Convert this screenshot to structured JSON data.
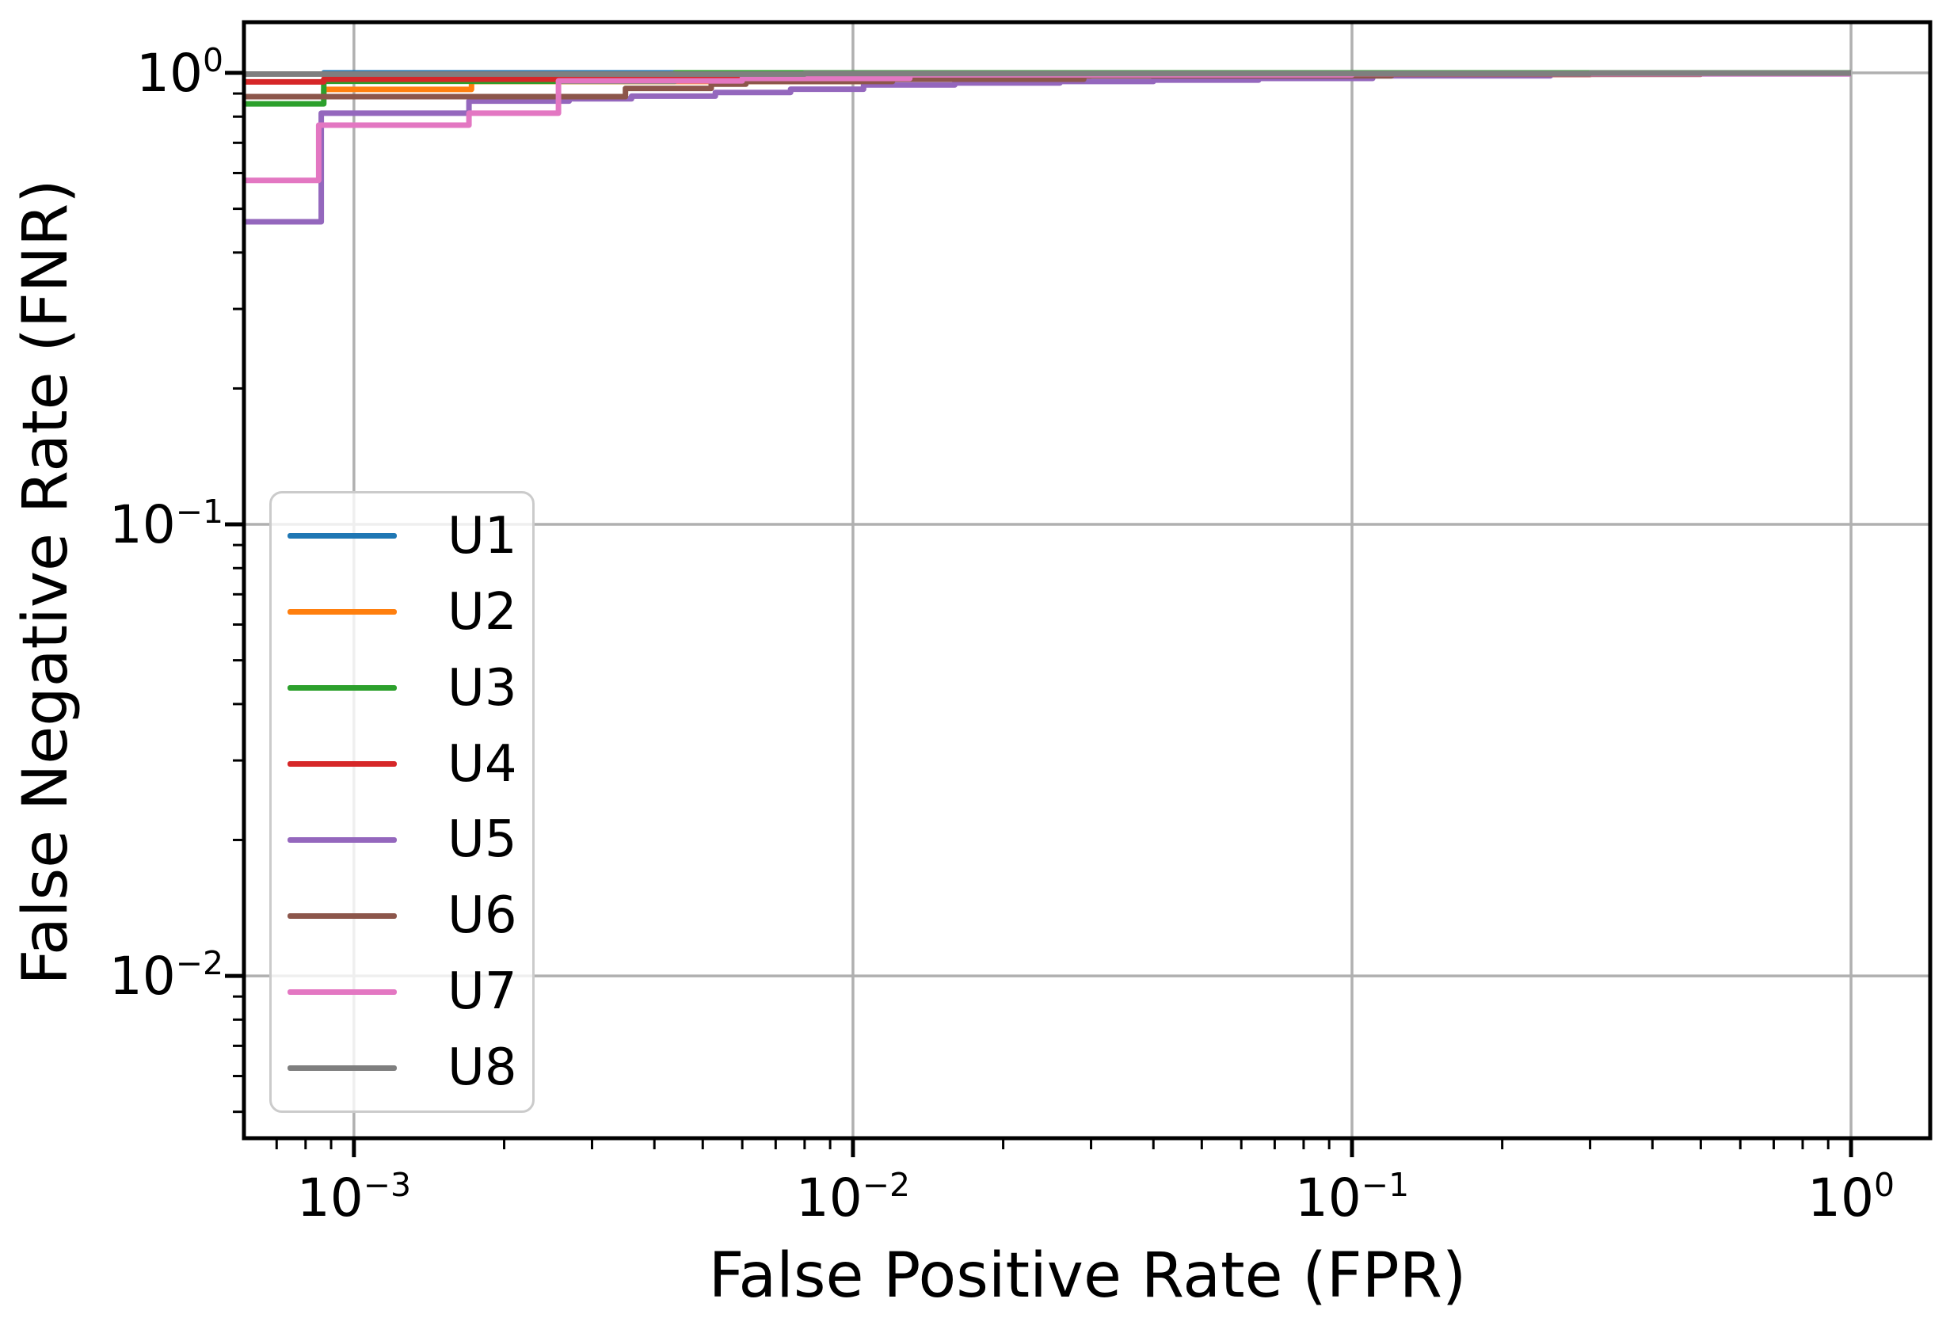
{
  "chart_data": {
    "type": "line",
    "subtype": "step-post",
    "title": "",
    "xlabel": "False Positive Rate (FPR)",
    "ylabel": "False Negative Rate (FNR)",
    "xscale": "log",
    "yscale": "log",
    "xlim": [
      0.000602,
      1.441
    ],
    "ylim": [
      0.00437,
      1.295
    ],
    "grid": true,
    "grid_color": "#b0b0b0",
    "spine_color": "#000000",
    "legend_position": "lower-left-inside",
    "x_ticks": [
      {
        "value": 0.001,
        "base": "10",
        "exp": "−3"
      },
      {
        "value": 0.01,
        "base": "10",
        "exp": "−2"
      },
      {
        "value": 0.1,
        "base": "10",
        "exp": "−1"
      },
      {
        "value": 1.0,
        "base": "10",
        "exp": "0"
      }
    ],
    "y_ticks": [
      {
        "value": 1.0,
        "base": "10",
        "exp": "0"
      },
      {
        "value": 0.1,
        "base": "10",
        "exp": "−1"
      },
      {
        "value": 0.01,
        "base": "10",
        "exp": "−2"
      }
    ],
    "curve_end_x": 1.0,
    "series": [
      {
        "name": "U1",
        "color": "#1f77b4",
        "start_fnr": 0.994,
        "steps": [
          [
            0.00087,
            1.0
          ]
        ]
      },
      {
        "name": "U2",
        "color": "#ff7f0e",
        "start_fnr": 0.886,
        "steps": [
          [
            0.00087,
            0.919
          ],
          [
            0.00172,
            0.957
          ],
          [
            0.012,
            0.985
          ],
          [
            0.03,
            0.995
          ],
          [
            0.2,
            1.0
          ]
        ]
      },
      {
        "name": "U3",
        "color": "#2ca02c",
        "start_fnr": 0.854,
        "steps": [
          [
            0.00087,
            0.958
          ],
          [
            0.0044,
            1.0
          ]
        ]
      },
      {
        "name": "U4",
        "color": "#d62728",
        "start_fnr": 0.955,
        "steps": [
          [
            0.00087,
            0.968
          ],
          [
            0.0044,
            0.985
          ],
          [
            0.02,
            0.992
          ],
          [
            0.3,
            0.998
          ]
        ]
      },
      {
        "name": "U5",
        "color": "#9467bd",
        "start_fnr": 0.468,
        "steps": [
          [
            0.00086,
            0.814
          ],
          [
            0.0017,
            0.866
          ],
          [
            0.0027,
            0.876
          ],
          [
            0.0036,
            0.888
          ],
          [
            0.0053,
            0.905
          ],
          [
            0.0075,
            0.92
          ],
          [
            0.0105,
            0.94
          ],
          [
            0.016,
            0.95
          ],
          [
            0.026,
            0.957
          ],
          [
            0.04,
            0.964
          ],
          [
            0.065,
            0.972
          ],
          [
            0.11,
            0.985
          ],
          [
            0.25,
            0.995
          ]
        ]
      },
      {
        "name": "U6",
        "color": "#8c564b",
        "start_fnr": 0.886,
        "steps": [
          [
            0.0035,
            0.924
          ],
          [
            0.0052,
            0.944
          ],
          [
            0.0061,
            0.957
          ],
          [
            0.012,
            0.968
          ],
          [
            0.029,
            0.985
          ],
          [
            0.12,
            0.993
          ],
          [
            0.5,
            0.998
          ]
        ]
      },
      {
        "name": "U7",
        "color": "#e377c2",
        "start_fnr": 0.578,
        "steps": [
          [
            0.00085,
            0.766
          ],
          [
            0.0017,
            0.814
          ],
          [
            0.00257,
            0.96
          ],
          [
            0.006,
            0.972
          ],
          [
            0.013,
            0.99
          ],
          [
            0.1,
            0.996
          ]
        ]
      },
      {
        "name": "U8",
        "color": "#7f7f7f",
        "start_fnr": 0.994,
        "steps": [
          [
            0.008,
            0.997
          ],
          [
            0.3,
            0.999
          ]
        ]
      }
    ]
  },
  "layout_note": "single matplotlib-style axes, no title"
}
